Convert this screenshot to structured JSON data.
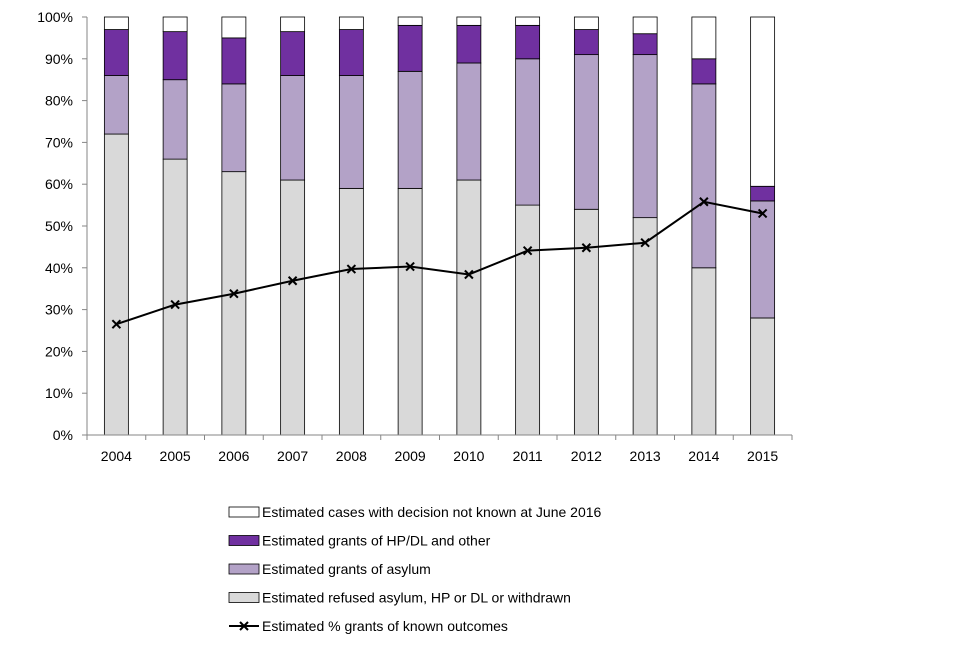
{
  "chart_data": {
    "type": "bar",
    "stacked": true,
    "categories": [
      "2004",
      "2005",
      "2006",
      "2007",
      "2008",
      "2009",
      "2010",
      "2011",
      "2012",
      "2013",
      "2014",
      "2015"
    ],
    "ylim": [
      0,
      100
    ],
    "y_ticks": [
      "0%",
      "10%",
      "20%",
      "30%",
      "40%",
      "50%",
      "60%",
      "70%",
      "80%",
      "90%",
      "100%"
    ],
    "series": [
      {
        "name": "Estimated refused asylum, HP or DL or withdrawn",
        "color": "#d9d9d9",
        "values": [
          72,
          66,
          63,
          61,
          59,
          59,
          61,
          55,
          54,
          52,
          40,
          28
        ]
      },
      {
        "name": "Estimated grants of asylum",
        "color": "#b3a2c7",
        "values": [
          14,
          19,
          21,
          25,
          27,
          28,
          28,
          35,
          37,
          39,
          44,
          28
        ]
      },
      {
        "name": "Estimated grants of HP/DL and other",
        "color": "#7030a0",
        "values": [
          11,
          11.5,
          11,
          10.5,
          11,
          11,
          9,
          8,
          6,
          5,
          6,
          3.5
        ]
      },
      {
        "name": "Estimated cases with decision not known at June 2016",
        "color": "#ffffff",
        "values": [
          3,
          3.5,
          5,
          3.5,
          3,
          2,
          2,
          2,
          3,
          4,
          10,
          40.5
        ]
      }
    ],
    "line": {
      "name": "Estimated % grants of known outcomes",
      "color": "#000000",
      "values": [
        26.5,
        31.2,
        33.8,
        36.9,
        39.7,
        40.3,
        38.4,
        44.1,
        44.8,
        46.0,
        55.8,
        53.0
      ]
    },
    "legend_order": [
      "Estimated cases with decision not known at June 2016",
      "Estimated grants of HP/DL and other",
      "Estimated grants of asylum",
      "Estimated refused asylum, HP or DL or withdrawn",
      "Estimated % grants of known outcomes"
    ]
  }
}
